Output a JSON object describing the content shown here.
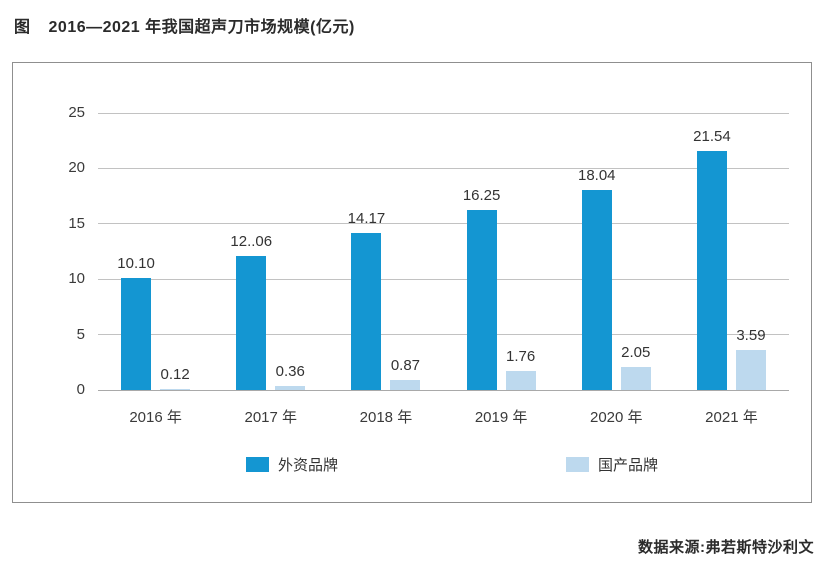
{
  "page": {
    "title_prefix": "图",
    "title": "2016—2021 年我国超声刀市场规模(亿元)",
    "source": "数据来源:弗若斯特沙利文"
  },
  "chart_data": {
    "type": "bar",
    "title": "2016—2021 年我国超声刀市场规模(亿元)",
    "categories": [
      "2016 年",
      "2017 年",
      "2018 年",
      "2019 年",
      "2020 年",
      "2021 年"
    ],
    "series": [
      {
        "name": "外资品牌",
        "color": "#1496d2",
        "values": [
          10.1,
          12.06,
          14.17,
          16.25,
          18.04,
          21.54
        ],
        "labels": [
          "10.10",
          "12..06",
          "14.17",
          "16.25",
          "18.04",
          "21.54"
        ]
      },
      {
        "name": "国产品牌",
        "color": "#bdd9ee",
        "values": [
          0.12,
          0.36,
          0.87,
          1.76,
          2.05,
          3.59
        ],
        "labels": [
          "0.12",
          "0.36",
          "0.87",
          "1.76",
          "2.05",
          "3.59"
        ]
      }
    ],
    "ylim": [
      0,
      25
    ],
    "yticks": [
      0,
      5,
      10,
      15,
      20,
      25
    ],
    "grid": true,
    "legend_position": "bottom",
    "unit": "亿元"
  }
}
